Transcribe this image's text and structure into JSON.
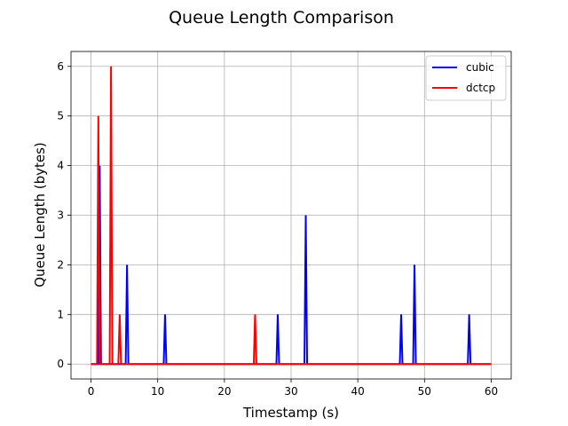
{
  "chart_data": {
    "type": "line",
    "title": "Queue Length Comparison",
    "xlabel": "Timestamp (s)",
    "ylabel": "Queue Length (bytes)",
    "xlim": [
      -3,
      63
    ],
    "ylim": [
      -0.3,
      6.3
    ],
    "xticks": [
      0,
      10,
      20,
      30,
      40,
      50,
      60
    ],
    "yticks": [
      0,
      1,
      2,
      3,
      4,
      5,
      6
    ],
    "grid": true,
    "legend_position": "top-right",
    "series": [
      {
        "name": "cubic",
        "color": "#0000ff",
        "x": [
          0,
          1.1,
          1.3,
          1.5,
          5.2,
          5.4,
          5.6,
          10.9,
          11.1,
          11.3,
          27.8,
          28.0,
          28.2,
          32.0,
          32.2,
          32.4,
          46.3,
          46.5,
          46.7,
          48.3,
          48.5,
          48.7,
          56.5,
          56.7,
          56.9,
          60
        ],
        "y": [
          0,
          0,
          4,
          0,
          0,
          2,
          0,
          0,
          1,
          0,
          0,
          1,
          0,
          0,
          3,
          0,
          0,
          1,
          0,
          0,
          2,
          0,
          0,
          1,
          0,
          0
        ]
      },
      {
        "name": "dctcp",
        "color": "#ff0000",
        "x": [
          0,
          0.9,
          1.1,
          1.3,
          2.8,
          3.0,
          3.2,
          4.1,
          4.3,
          4.5,
          24.4,
          24.6,
          24.8,
          60
        ],
        "y": [
          0,
          0,
          5,
          0,
          0,
          6,
          0,
          0,
          1,
          0,
          0,
          1,
          0,
          0
        ]
      }
    ]
  }
}
